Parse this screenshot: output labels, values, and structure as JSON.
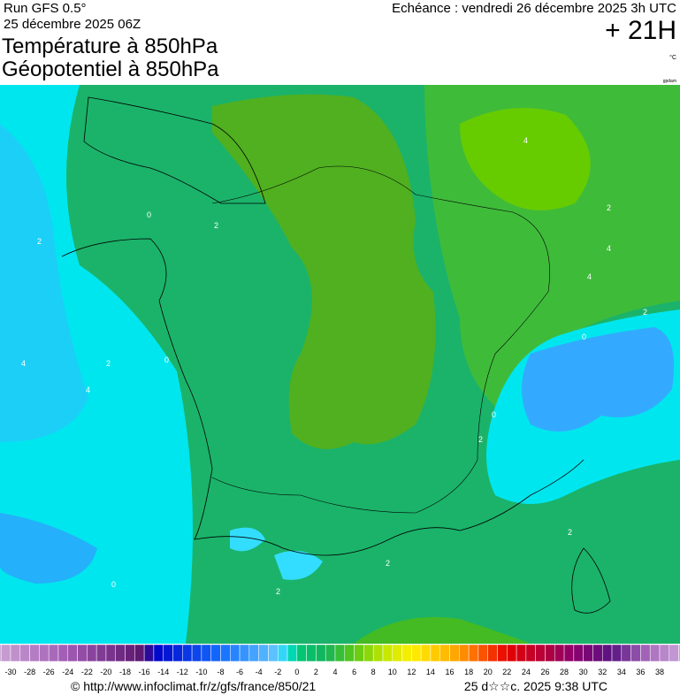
{
  "header": {
    "run": "Run GFS 0.5°",
    "date": "25 décembre 2025 06Z",
    "title_1": "Température à 850hPa",
    "title_2": "Géopotentiel à 850hPa",
    "echeance": "Echéance : vendredi 26 décembre 2025 3h UTC",
    "lead": "+ 21H",
    "unit": "°C",
    "source_tag": "gpdam"
  },
  "map": {
    "contour_labels": [
      "2",
      "4",
      "0",
      "2",
      "4",
      "2",
      "0",
      "4",
      "2",
      "4",
      "4",
      "2",
      "0",
      "0",
      "2",
      "2",
      "2",
      "0",
      "2"
    ]
  },
  "scale": {
    "ticks": [
      -30,
      -28,
      -26,
      -24,
      -22,
      -20,
      -18,
      -16,
      -14,
      -12,
      -10,
      -8,
      -6,
      -4,
      -2,
      0,
      2,
      4,
      6,
      8,
      10,
      12,
      14,
      16,
      18,
      20,
      22,
      24,
      26,
      28,
      30,
      32,
      34,
      36,
      38
    ]
  },
  "footer": {
    "url": "© http://www.infoclimat.fr/z/gfs/france/850/21",
    "timestamp": "25 d☆☆c. 2025  9:38 UTC"
  }
}
